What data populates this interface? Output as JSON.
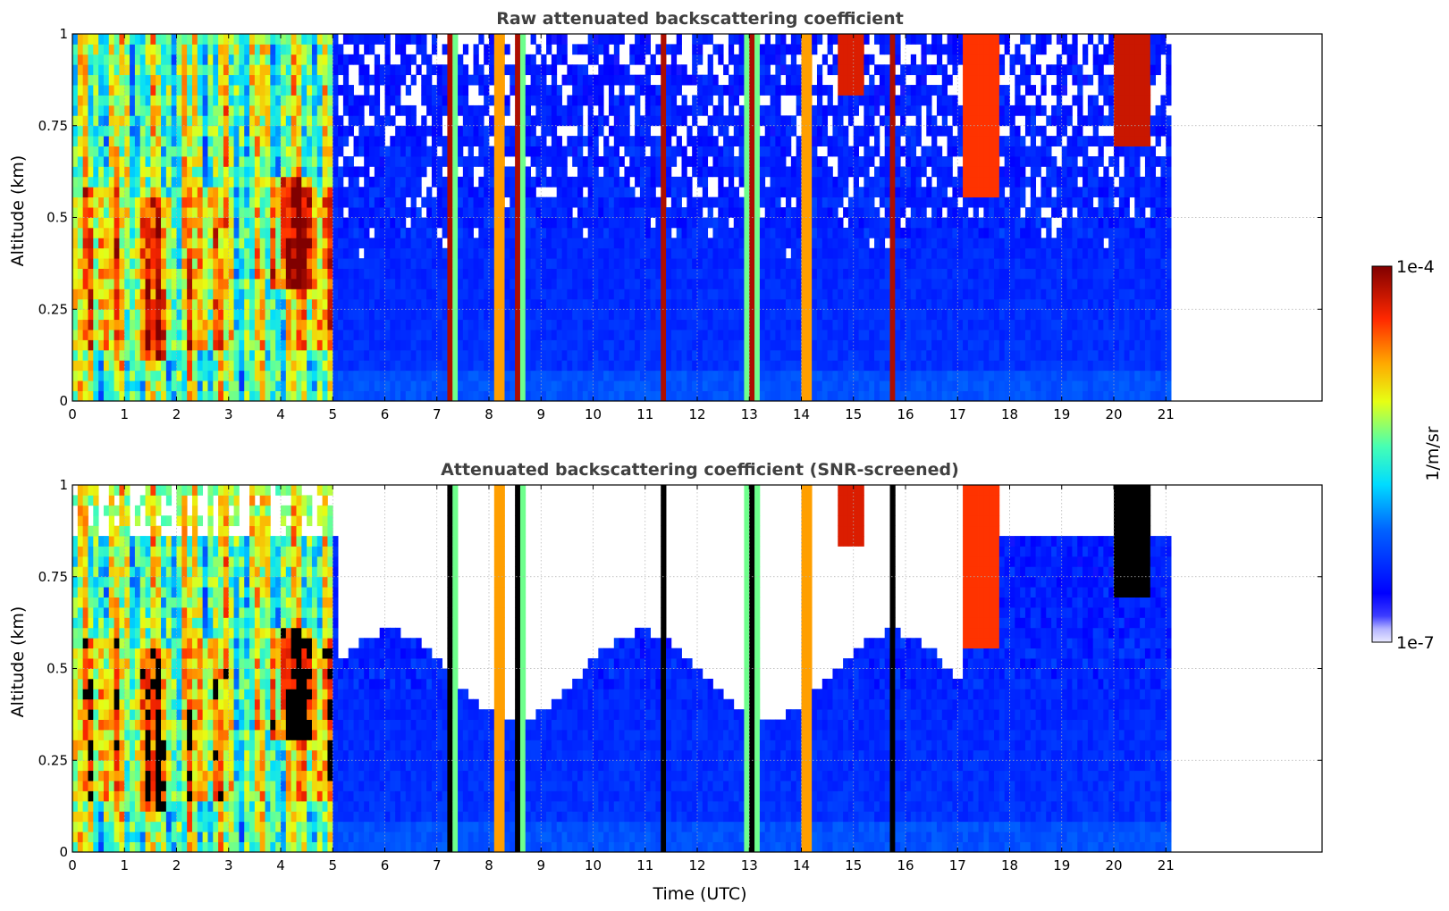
{
  "chart_data": [
    {
      "type": "heatmap",
      "title": "Raw attenuated backscattering coefficient",
      "xlabel": "",
      "ylabel": "Altitude (km)",
      "xlim": [
        0,
        24
      ],
      "ylim": [
        0,
        1
      ],
      "x_ticks": [
        "0",
        "1",
        "2",
        "3",
        "4",
        "5",
        "6",
        "7",
        "8",
        "9",
        "10",
        "11",
        "12",
        "13",
        "14",
        "15",
        "16",
        "17",
        "18",
        "19",
        "20",
        "21"
      ],
      "y_ticks": [
        "0",
        "0.25",
        "0.5",
        "0.75",
        "1"
      ],
      "grid": true,
      "data_end_hour": 21.1,
      "screened": false
    },
    {
      "type": "heatmap",
      "title": "Attenuated backscattering coefficient (SNR-screened)",
      "xlabel": "Time (UTC)",
      "ylabel": "Altitude (km)",
      "xlim": [
        0,
        24
      ],
      "ylim": [
        0,
        1
      ],
      "x_ticks": [
        "0",
        "1",
        "2",
        "3",
        "4",
        "5",
        "6",
        "7",
        "8",
        "9",
        "10",
        "11",
        "12",
        "13",
        "14",
        "15",
        "16",
        "17",
        "18",
        "19",
        "20",
        "21"
      ],
      "y_ticks": [
        "0",
        "0.25",
        "0.5",
        "0.75",
        "1"
      ],
      "grid": true,
      "data_end_hour": 21.1,
      "screened": true
    }
  ],
  "colorbar": {
    "label": "1/m/sr",
    "min_label": "1e-7",
    "max_label": "1e-4",
    "min_value": 1e-07,
    "max_value": 0.0001,
    "colormap": "jet"
  },
  "colors": {
    "title": "#404040",
    "grid": "#b0b0b0"
  }
}
